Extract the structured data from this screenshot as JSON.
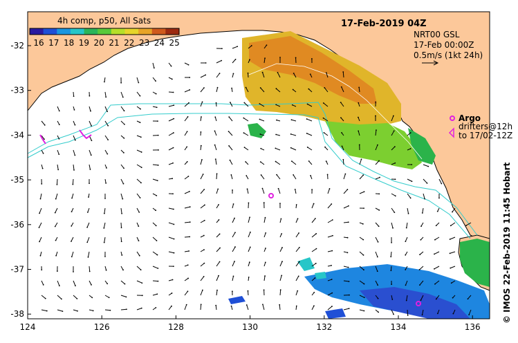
{
  "title": "17-Feb-2019 04Z",
  "legend": {
    "title": "4h comp, p50, All Sats",
    "ticks": [
      "16",
      "17",
      "18",
      "19",
      "20",
      "21",
      "22",
      "23",
      "24",
      "25"
    ],
    "colors": [
      "#2a1aa0",
      "#1f4fd6",
      "#1a96e0",
      "#27c6c8",
      "#2bb55a",
      "#58c93a",
      "#b6df2a",
      "#e6d52a",
      "#e8a427",
      "#cf5a1c",
      "#9c2a10"
    ]
  },
  "current_info": {
    "line1": "NRT00 GSL",
    "line2": "17-Feb 00:00Z",
    "line3": "0.5m/s (1kt 24h)"
  },
  "argo": {
    "label": "Argo",
    "drifters_line1": "drifters@12h",
    "drifters_line2": "to 17/02-12Z"
  },
  "credit": "© IMOS 22-Feb-2019 11:45 Hobart",
  "axes": {
    "x_ticks": [
      "124",
      "126",
      "128",
      "130",
      "132",
      "134",
      "136"
    ],
    "y_ticks": [
      "-32",
      "-33",
      "-34",
      "-35",
      "-36",
      "-37",
      "-38"
    ]
  },
  "colors": {
    "land": "#fcc89a",
    "ocean": "#ffffff",
    "contour": "#33cccc",
    "argo": "#e020e0"
  }
}
